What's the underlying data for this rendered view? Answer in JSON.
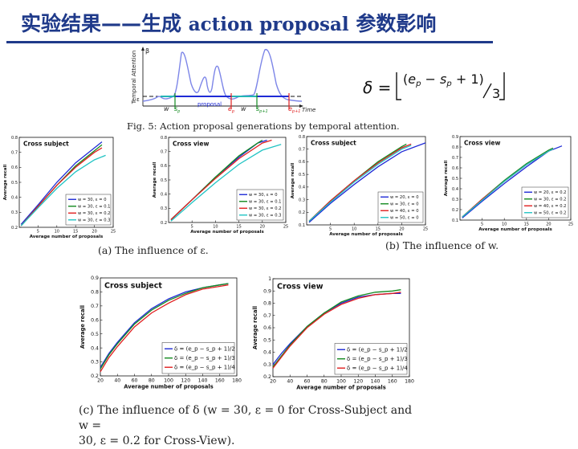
{
  "slide": {
    "title_cn1": "实验结果——生成",
    "title_en": "action proposal",
    "title_cn2": "参数影响"
  },
  "figure5": {
    "caption": "Fig. 5: Action proposal generations by temporal attention.",
    "ylabel": "Temporal Attention",
    "xlabel": "Time",
    "beta": "β",
    "epsilon": "ε",
    "labels": {
      "w1": "w",
      "sp": "s",
      "sp_sub": "p",
      "proposal": "proposal",
      "ep": "e",
      "ep_sub": "p",
      "w2": "w",
      "sp1": "s",
      "sp1_sub": "p+1",
      "ep1": "e",
      "ep1_sub": "p+1"
    }
  },
  "formula": {
    "lhs": "δ =",
    "e": "e",
    "e_sub": "p",
    "minus": " − ",
    "s": "s",
    "s_sub": "p",
    "plus": " + 1)",
    "open": "(",
    "den": "3"
  },
  "captions": {
    "a": "(a) The influence of ε.",
    "b": "(b) The influence of w.",
    "c_line1": "(c) The influence of δ (w = 30, ε = 0 for Cross-Subject and w =",
    "c_line2": "30, ε = 0.2 for Cross-View)."
  },
  "colors": {
    "blue": "#1f2bd6",
    "green": "#138a20",
    "red": "#e02020",
    "cyan": "#22c4c4",
    "title": "#1f3a8a",
    "attention": "#7d86e8"
  },
  "chart_data": [
    {
      "id": "a1",
      "type": "line",
      "title": "Cross subject",
      "xlabel": "Average number of proposals",
      "ylabel": "Average recall",
      "xlim": [
        0,
        25
      ],
      "ylim": [
        0.2,
        0.8
      ],
      "xticks": [
        5,
        10,
        15,
        20,
        25
      ],
      "yticks": [
        0.2,
        0.3,
        0.4,
        0.5,
        0.6,
        0.7,
        0.8
      ],
      "legend": "bottom-right",
      "series": [
        {
          "name": "w = 30, ε = 0",
          "color": "blue",
          "points": [
            [
              0.5,
              0.22
            ],
            [
              5,
              0.35
            ],
            [
              10,
              0.5
            ],
            [
              15,
              0.63
            ],
            [
              20,
              0.73
            ],
            [
              22,
              0.77
            ]
          ]
        },
        {
          "name": "w = 30, ε = 0.1",
          "color": "green",
          "points": [
            [
              0.5,
              0.21
            ],
            [
              5,
              0.34
            ],
            [
              10,
              0.48
            ],
            [
              15,
              0.61
            ],
            [
              20,
              0.71
            ],
            [
              22,
              0.75
            ]
          ]
        },
        {
          "name": "w = 30, ε = 0.2",
          "color": "red",
          "points": [
            [
              0.5,
              0.21
            ],
            [
              5,
              0.34
            ],
            [
              10,
              0.48
            ],
            [
              15,
              0.6
            ],
            [
              20,
              0.7
            ],
            [
              22,
              0.73
            ]
          ]
        },
        {
          "name": "w = 30, ε = 0.3",
          "color": "cyan",
          "points": [
            [
              0.5,
              0.21
            ],
            [
              5,
              0.33
            ],
            [
              10,
              0.46
            ],
            [
              15,
              0.57
            ],
            [
              20,
              0.65
            ],
            [
              23,
              0.68
            ]
          ]
        }
      ]
    },
    {
      "id": "a2",
      "type": "line",
      "title": "Cross view",
      "xlabel": "Average number of proposals",
      "ylabel": "Average recall",
      "xlim": [
        0,
        25
      ],
      "ylim": [
        0.2,
        0.8
      ],
      "xticks": [
        5,
        10,
        15,
        20,
        25
      ],
      "yticks": [
        0.2,
        0.3,
        0.4,
        0.5,
        0.6,
        0.7,
        0.8
      ],
      "legend": "bottom-right",
      "series": [
        {
          "name": "w = 30, ε = 0",
          "color": "blue",
          "points": [
            [
              0.5,
              0.22
            ],
            [
              5,
              0.36
            ],
            [
              10,
              0.52
            ],
            [
              15,
              0.66
            ],
            [
              19,
              0.76
            ],
            [
              21,
              0.78
            ]
          ]
        },
        {
          "name": "w = 30, ε = 0.1",
          "color": "green",
          "points": [
            [
              0.5,
              0.22
            ],
            [
              5,
              0.36
            ],
            [
              10,
              0.52
            ],
            [
              15,
              0.67
            ],
            [
              19,
              0.76
            ],
            [
              20,
              0.78
            ]
          ]
        },
        {
          "name": "w = 30, ε = 0.2",
          "color": "red",
          "points": [
            [
              0.5,
              0.22
            ],
            [
              5,
              0.36
            ],
            [
              10,
              0.51
            ],
            [
              15,
              0.65
            ],
            [
              20,
              0.76
            ],
            [
              22,
              0.78
            ]
          ]
        },
        {
          "name": "w = 30, ε = 0.3",
          "color": "cyan",
          "points": [
            [
              0.5,
              0.21
            ],
            [
              5,
              0.34
            ],
            [
              10,
              0.48
            ],
            [
              15,
              0.61
            ],
            [
              20,
              0.71
            ],
            [
              24,
              0.75
            ]
          ]
        }
      ]
    },
    {
      "id": "b1",
      "type": "line",
      "title": "Cross subject",
      "xlabel": "Average number of proposals",
      "ylabel": "Average recall",
      "xlim": [
        0,
        25
      ],
      "ylim": [
        0.1,
        0.8
      ],
      "xticks": [
        5,
        10,
        15,
        20,
        25
      ],
      "yticks": [
        0.1,
        0.2,
        0.3,
        0.4,
        0.5,
        0.6,
        0.7,
        0.8
      ],
      "legend": "bottom-right",
      "series": [
        {
          "name": "w = 20, ε = 0",
          "color": "blue",
          "points": [
            [
              0.5,
              0.12
            ],
            [
              5,
              0.27
            ],
            [
              10,
              0.42
            ],
            [
              15,
              0.56
            ],
            [
              20,
              0.68
            ],
            [
              25,
              0.75
            ]
          ]
        },
        {
          "name": "w = 30, ε = 0",
          "color": "green",
          "points": [
            [
              0.5,
              0.13
            ],
            [
              5,
              0.29
            ],
            [
              10,
              0.45
            ],
            [
              15,
              0.6
            ],
            [
              20,
              0.72
            ],
            [
              21,
              0.74
            ]
          ]
        },
        {
          "name": "w = 40, ε = 0",
          "color": "red",
          "points": [
            [
              0.5,
              0.13
            ],
            [
              5,
              0.29
            ],
            [
              10,
              0.45
            ],
            [
              15,
              0.59
            ],
            [
              20,
              0.71
            ],
            [
              22,
              0.74
            ]
          ]
        },
        {
          "name": "w = 50, ε = 0",
          "color": "cyan",
          "points": [
            [
              0.5,
              0.13
            ],
            [
              5,
              0.28
            ],
            [
              10,
              0.44
            ],
            [
              15,
              0.58
            ],
            [
              20,
              0.7
            ],
            [
              22,
              0.73
            ]
          ]
        }
      ]
    },
    {
      "id": "b2",
      "type": "line",
      "title": "Cross view",
      "xlabel": "Average number of proposals",
      "ylabel": "Average recall",
      "xlim": [
        0,
        25
      ],
      "ylim": [
        0.1,
        0.9
      ],
      "xticks": [
        5,
        10,
        15,
        20,
        25
      ],
      "yticks": [
        0.1,
        0.2,
        0.3,
        0.4,
        0.5,
        0.6,
        0.7,
        0.8,
        0.9
      ],
      "legend": "bottom-right",
      "series": [
        {
          "name": "w = 20, ε = 0.2",
          "color": "blue",
          "points": [
            [
              0.5,
              0.12
            ],
            [
              5,
              0.28
            ],
            [
              10,
              0.45
            ],
            [
              15,
              0.61
            ],
            [
              20,
              0.76
            ],
            [
              23,
              0.81
            ]
          ]
        },
        {
          "name": "w = 30, ε = 0.2",
          "color": "green",
          "points": [
            [
              0.5,
              0.13
            ],
            [
              5,
              0.3
            ],
            [
              10,
              0.48
            ],
            [
              15,
              0.64
            ],
            [
              20,
              0.77
            ],
            [
              21,
              0.79
            ]
          ]
        },
        {
          "name": "w = 40, ε = 0.2",
          "color": "red",
          "points": [
            [
              0.5,
              0.13
            ],
            [
              5,
              0.3
            ],
            [
              10,
              0.47
            ],
            [
              15,
              0.63
            ],
            [
              20,
              0.76
            ],
            [
              21,
              0.78
            ]
          ]
        },
        {
          "name": "w = 50, ε = 0.2",
          "color": "cyan",
          "points": [
            [
              0.5,
              0.13
            ],
            [
              5,
              0.29
            ],
            [
              10,
              0.47
            ],
            [
              15,
              0.63
            ],
            [
              20,
              0.76
            ],
            [
              21,
              0.78
            ]
          ]
        }
      ]
    },
    {
      "id": "c1",
      "type": "line",
      "title": "Cross subject",
      "xlabel": "Average number of proposals",
      "ylabel": "Average recall",
      "xlim": [
        20,
        180
      ],
      "ylim": [
        0.2,
        0.9
      ],
      "xticks": [
        20,
        40,
        60,
        80,
        100,
        120,
        140,
        160,
        180
      ],
      "yticks": [
        0.2,
        0.3,
        0.4,
        0.5,
        0.6,
        0.7,
        0.8,
        0.9
      ],
      "legend": "bottom-right",
      "series": [
        {
          "name": "δ = (e_p − s_p + 1)/2",
          "color": "blue",
          "points": [
            [
              20,
              0.26
            ],
            [
              30,
              0.36
            ],
            [
              40,
              0.44
            ],
            [
              60,
              0.58
            ],
            [
              80,
              0.68
            ],
            [
              100,
              0.75
            ],
            [
              120,
              0.8
            ],
            [
              140,
              0.83
            ],
            [
              160,
              0.85
            ],
            [
              170,
              0.86
            ]
          ]
        },
        {
          "name": "δ = (e_p − s_p + 1)/3",
          "color": "green",
          "points": [
            [
              20,
              0.25
            ],
            [
              30,
              0.35
            ],
            [
              40,
              0.43
            ],
            [
              60,
              0.57
            ],
            [
              80,
              0.67
            ],
            [
              100,
              0.74
            ],
            [
              120,
              0.79
            ],
            [
              140,
              0.83
            ],
            [
              160,
              0.85
            ],
            [
              170,
              0.86
            ]
          ]
        },
        {
          "name": "δ = (e_p − s_p + 1)/4",
          "color": "red",
          "points": [
            [
              20,
              0.23
            ],
            [
              30,
              0.33
            ],
            [
              40,
              0.41
            ],
            [
              60,
              0.55
            ],
            [
              80,
              0.65
            ],
            [
              100,
              0.72
            ],
            [
              120,
              0.78
            ],
            [
              140,
              0.82
            ],
            [
              160,
              0.84
            ],
            [
              170,
              0.85
            ]
          ]
        }
      ]
    },
    {
      "id": "c2",
      "type": "line",
      "title": "Cross view",
      "xlabel": "Average number of proposals",
      "ylabel": "Average recall",
      "xlim": [
        20,
        180
      ],
      "ylim": [
        0.2,
        1.0
      ],
      "xticks": [
        20,
        40,
        60,
        80,
        100,
        120,
        140,
        160,
        180
      ],
      "yticks": [
        0.2,
        0.3,
        0.4,
        0.5,
        0.6,
        0.7,
        0.8,
        0.9,
        1.0
      ],
      "legend": "bottom-right",
      "series": [
        {
          "name": "δ = (e_p − s_p + 1)/2",
          "color": "blue",
          "points": [
            [
              20,
              0.3
            ],
            [
              30,
              0.39
            ],
            [
              40,
              0.47
            ],
            [
              60,
              0.61
            ],
            [
              80,
              0.72
            ],
            [
              100,
              0.8
            ],
            [
              120,
              0.85
            ],
            [
              140,
              0.87
            ],
            [
              160,
              0.88
            ],
            [
              170,
              0.88
            ]
          ]
        },
        {
          "name": "δ = (e_p − s_p + 1)/3",
          "color": "green",
          "points": [
            [
              20,
              0.28
            ],
            [
              30,
              0.37
            ],
            [
              40,
              0.46
            ],
            [
              60,
              0.61
            ],
            [
              80,
              0.72
            ],
            [
              100,
              0.81
            ],
            [
              120,
              0.86
            ],
            [
              140,
              0.89
            ],
            [
              160,
              0.9
            ],
            [
              170,
              0.91
            ]
          ]
        },
        {
          "name": "δ = (e_p − s_p + 1)/4",
          "color": "red",
          "points": [
            [
              20,
              0.27
            ],
            [
              30,
              0.36
            ],
            [
              40,
              0.45
            ],
            [
              60,
              0.6
            ],
            [
              80,
              0.71
            ],
            [
              100,
              0.79
            ],
            [
              120,
              0.84
            ],
            [
              140,
              0.87
            ],
            [
              160,
              0.88
            ],
            [
              170,
              0.89
            ]
          ]
        }
      ]
    }
  ]
}
